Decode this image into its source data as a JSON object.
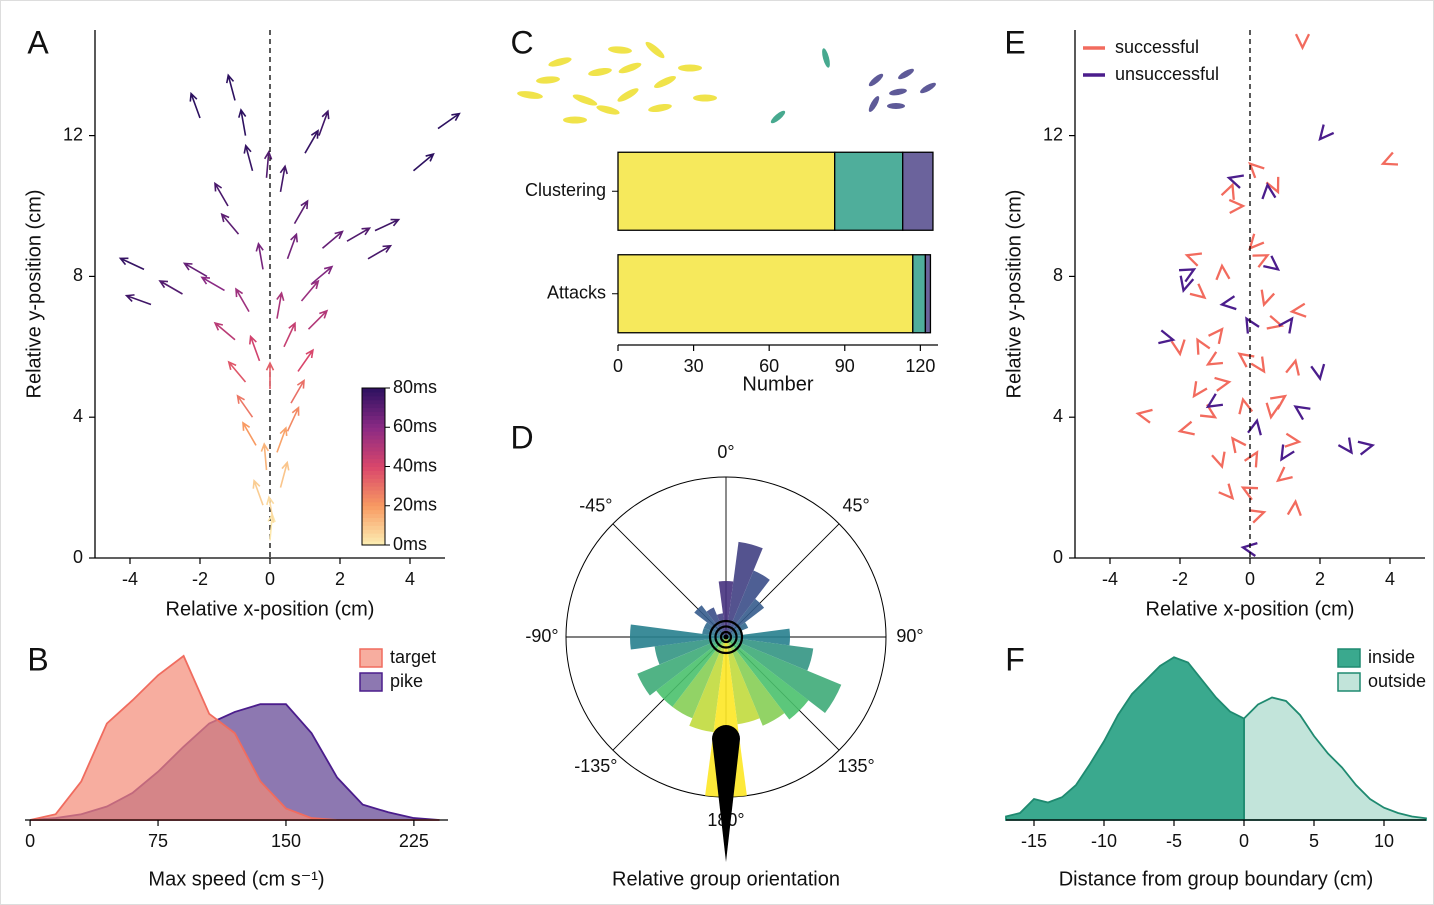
{
  "chart_data": [
    {
      "type": "quiver",
      "panel": "A",
      "xlabel": "Relative x-position (cm)",
      "ylabel": "Relative y-position (cm)",
      "xlim": [
        -5,
        5
      ],
      "ylim": [
        0,
        15
      ],
      "xticks": [
        -4,
        -2,
        0,
        2,
        4
      ],
      "yticks": [
        0,
        4,
        8,
        12
      ],
      "vline": 0,
      "x": [
        0,
        0.1,
        -0.2,
        0.3,
        -0.1,
        0.2,
        -0.4,
        0.5,
        -0.5,
        0.6,
        0.0,
        -0.7,
        0.8,
        -0.3,
        0.4,
        -1.0,
        1.1,
        0.2,
        -0.6,
        0.9,
        -1.3,
        1.2,
        -0.2,
        0.5,
        -1.8,
        1.5,
        -0.9,
        0.7,
        -2.5,
        2.2,
        -1.2,
        0.3,
        -3.4,
        3.0,
        -0.5,
        1.0,
        -2.0,
        2.8,
        -0.7,
        -1.0,
        1.4,
        -0.1,
        4.1,
        4.8,
        -3.6
      ],
      "y": [
        0.5,
        1.0,
        1.5,
        2.0,
        2.5,
        3.0,
        3.2,
        3.6,
        4.0,
        4.4,
        4.8,
        5.0,
        5.3,
        5.6,
        6.0,
        6.2,
        6.5,
        6.8,
        7.0,
        7.3,
        7.6,
        7.8,
        8.2,
        8.5,
        8.0,
        8.8,
        9.2,
        9.5,
        7.5,
        9.0,
        10.0,
        10.4,
        7.2,
        9.3,
        11.0,
        11.5,
        12.5,
        8.5,
        12.0,
        13.0,
        12.0,
        10.8,
        11.0,
        12.2,
        8.2
      ],
      "angle": [
        5,
        -10,
        -20,
        15,
        -5,
        20,
        -30,
        25,
        -35,
        30,
        0,
        -40,
        35,
        -20,
        25,
        -50,
        45,
        10,
        -30,
        40,
        -60,
        50,
        -10,
        20,
        -60,
        50,
        -40,
        30,
        -60,
        60,
        -30,
        10,
        -70,
        65,
        -15,
        30,
        -20,
        60,
        -10,
        -15,
        20,
        5,
        50,
        55,
        -65
      ],
      "time": [
        2,
        5,
        8,
        10,
        14,
        18,
        20,
        24,
        28,
        30,
        34,
        36,
        40,
        42,
        45,
        48,
        50,
        52,
        55,
        56,
        60,
        62,
        64,
        65,
        68,
        68,
        70,
        70,
        72,
        72,
        74,
        75,
        76,
        76,
        78,
        78,
        80,
        74,
        80,
        80,
        76,
        72,
        80,
        80,
        78
      ],
      "colormap": "magma",
      "clim": [
        0,
        80
      ],
      "cticks": [
        {
          "value": 0,
          "label": "0ms"
        },
        {
          "value": 20,
          "label": "20ms"
        },
        {
          "value": 40,
          "label": "40ms"
        },
        {
          "value": 60,
          "label": "60ms"
        },
        {
          "value": 80,
          "label": "80ms"
        }
      ]
    },
    {
      "type": "area",
      "panel": "B",
      "xlabel": "Max speed (cm s⁻¹)",
      "xlim": [
        -3,
        245
      ],
      "ylim": [
        0,
        1
      ],
      "xticks": [
        0,
        75,
        150,
        225
      ],
      "x": [
        0,
        15,
        30,
        45,
        60,
        75,
        90,
        105,
        120,
        135,
        150,
        165,
        180,
        195,
        210,
        225,
        240
      ],
      "alpha": 0.7,
      "legend": "upper right",
      "series": [
        {
          "name": "target",
          "color": "#f48a76",
          "edgecolor": "#f06c5f",
          "values": [
            0,
            0.03,
            0.2,
            0.5,
            0.62,
            0.75,
            0.85,
            0.55,
            0.45,
            0.2,
            0.06,
            0.01,
            0,
            0,
            0,
            0,
            0
          ]
        },
        {
          "name": "pike",
          "color": "#5d3f90",
          "edgecolor": "#4b1d8c",
          "values": [
            0,
            0.01,
            0.03,
            0.07,
            0.14,
            0.25,
            0.38,
            0.5,
            0.56,
            0.6,
            0.6,
            0.45,
            0.22,
            0.08,
            0.04,
            0.01,
            0
          ]
        }
      ]
    },
    {
      "type": "bar",
      "orientation": "horizontal",
      "stacked": true,
      "panel": "C",
      "xlabel": "Number",
      "categories": [
        "Clustering",
        "Attacks"
      ],
      "xlim": [
        0,
        127
      ],
      "xticks": [
        0,
        30,
        60,
        90,
        120
      ],
      "series": [
        {
          "color": "#f6e95c",
          "values": [
            86,
            117
          ]
        },
        {
          "color": "#4fae9b",
          "values": [
            27,
            5
          ]
        },
        {
          "color": "#6b639c",
          "values": [
            12,
            2
          ]
        }
      ]
    },
    {
      "type": "polar",
      "panel": "D",
      "xlabel": "Relative group orientation",
      "ylim": [
        0,
        1
      ],
      "colormap": "viridis",
      "x": [
        -165,
        -150,
        -135,
        -120,
        -105,
        -90,
        -75,
        -60,
        -45,
        -30,
        -15,
        0,
        15,
        30,
        45,
        60,
        75,
        90,
        105,
        120,
        135,
        150,
        165,
        180
      ],
      "values": [
        0.6,
        0.55,
        0.55,
        0.6,
        0.45,
        0.6,
        0.15,
        0.15,
        0.25,
        0.2,
        0.15,
        0.35,
        0.6,
        0.45,
        0.3,
        0.15,
        0.1,
        0.4,
        0.55,
        0.78,
        0.65,
        0.6,
        0.55,
        1.0
      ],
      "xticks": [
        {
          "value": 0,
          "label": "0°"
        },
        {
          "value": 45,
          "label": "45°"
        },
        {
          "value": 90,
          "label": "90°"
        },
        {
          "value": 135,
          "label": "135°"
        },
        {
          "value": 180,
          "label": "180°"
        },
        {
          "value": -135,
          "label": "-135°"
        },
        {
          "value": -90,
          "label": "-90°"
        },
        {
          "value": -45,
          "label": "-45°"
        }
      ]
    },
    {
      "type": "scatter",
      "marker": "chevron",
      "panel": "E",
      "xlabel": "Relative x-position (cm)",
      "ylabel": "Relative y-position (cm)",
      "xlim": [
        -5,
        5
      ],
      "ylim": [
        0,
        15
      ],
      "xticks": [
        -4,
        -2,
        0,
        2,
        4
      ],
      "yticks": [
        0,
        4,
        8,
        12
      ],
      "vline": 0,
      "legend": "upper left",
      "series": [
        {
          "name": "successful",
          "color": "#f26b5e",
          "x": [
            1.5,
            3.8,
            0,
            -0.5,
            -0.2,
            0.8,
            0,
            -1.8,
            -0.8,
            0.5,
            -1.3,
            0.4,
            1.2,
            -1.5,
            -0.8,
            0.9,
            -2.0,
            -1.2,
            -0.3,
            1.3,
            -0.6,
            0.4,
            -1.6,
            -3.2,
            -0.2,
            1.0,
            -1.0,
            0.6,
            -2.0,
            -0.5,
            0.2,
            1.4,
            -0.8,
            0.8,
            -0.2,
            1.3,
            0.4,
            -0.5
          ],
          "y": [
            14.5,
            11.2,
            11.2,
            10.6,
            10,
            10.4,
            8.8,
            8.6,
            8.3,
            8.6,
            7.4,
            7.2,
            7.0,
            6.2,
            6.5,
            6.6,
            5.8,
            5.5,
            5.8,
            5.6,
            5.0,
            5.3,
            4.6,
            4.1,
            4.5,
            4.6,
            4.0,
            4.0,
            3.6,
            3.4,
            3.0,
            3.3,
            2.6,
            2.2,
            2.0,
            1.6,
            1.3,
            1.7
          ]
        },
        {
          "name": "unsuccessful",
          "color": "#4b1d8c",
          "x": [
            2.0,
            -0.6,
            0.5,
            -1.6,
            0.8,
            -1.9,
            -0.8,
            -0.1,
            1.2,
            -2.2,
            2.0,
            -1.2,
            1.3,
            0.2,
            3.5,
            2.9,
            0.9,
            -0.2
          ],
          "y": [
            11.9,
            10.8,
            10.6,
            8.2,
            8.2,
            7.6,
            7.2,
            6.8,
            6.8,
            6.2,
            5.1,
            4.3,
            4.3,
            3.9,
            3.2,
            3.0,
            2.8,
            0.3
          ]
        }
      ]
    },
    {
      "type": "area",
      "panel": "F",
      "xlabel": "Distance from group boundary (cm)",
      "xlim": [
        -17,
        13
      ],
      "ylim": [
        0,
        1
      ],
      "xticks": [
        -15,
        -10,
        -5,
        0,
        5,
        10
      ],
      "x": [
        -17,
        -16,
        -15,
        -14,
        -13,
        -12,
        -11,
        -10,
        -9,
        -8,
        -7,
        -6,
        -5,
        -4,
        -3,
        -2,
        -1,
        0,
        1,
        2,
        3,
        4,
        5,
        6,
        7,
        8,
        9,
        10,
        11,
        12,
        13
      ],
      "alpha": 1,
      "legend": "upper right",
      "series": [
        {
          "name": "inside",
          "color": "#3aa98e",
          "edgecolor": "#1f8a70",
          "values": [
            0.02,
            0.04,
            0.12,
            0.1,
            0.13,
            0.2,
            0.32,
            0.45,
            0.6,
            0.72,
            0.8,
            0.88,
            0.93,
            0.9,
            0.8,
            0.7,
            0.62,
            0.58,
            null,
            null,
            null,
            null,
            null,
            null,
            null,
            null,
            null,
            null,
            null,
            null,
            null
          ]
        },
        {
          "name": "outside",
          "color": "#c2e4da",
          "edgecolor": "#1f8a70",
          "values": [
            null,
            null,
            null,
            null,
            null,
            null,
            null,
            null,
            null,
            null,
            null,
            null,
            null,
            null,
            null,
            null,
            null,
            0.58,
            0.66,
            0.7,
            0.68,
            0.6,
            0.48,
            0.38,
            0.3,
            0.2,
            0.12,
            0.07,
            0.04,
            0.02,
            0.01
          ]
        }
      ]
    }
  ]
}
